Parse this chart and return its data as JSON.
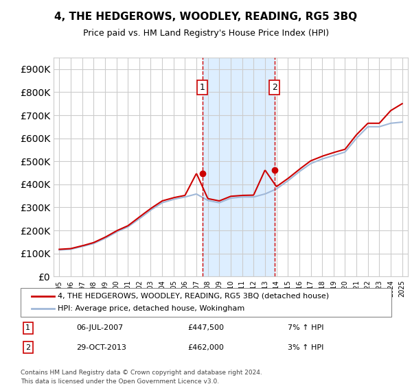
{
  "title": "4, THE HEDGEROWS, WOODLEY, READING, RG5 3BQ",
  "subtitle": "Price paid vs. HM Land Registry's House Price Index (HPI)",
  "legend_line1": "4, THE HEDGEROWS, WOODLEY, READING, RG5 3BQ (detached house)",
  "legend_line2": "HPI: Average price, detached house, Wokingham",
  "footer": "Contains HM Land Registry data © Crown copyright and database right 2024.\nThis data is licensed under the Open Government Licence v3.0.",
  "sale1_date": "06-JUL-2007",
  "sale1_price": 447500,
  "sale1_label": "7% ↑ HPI",
  "sale2_date": "29-OCT-2013",
  "sale2_price": 462000,
  "sale2_label": "3% ↑ HPI",
  "sale1_x": 2007.51,
  "sale2_x": 2013.83,
  "ylim": [
    0,
    950000
  ],
  "xlim_left": 1994.5,
  "xlim_right": 2025.5,
  "red_color": "#cc0000",
  "blue_color": "#a0b8d8",
  "shade_color": "#ddeeff",
  "background_color": "#ffffff",
  "grid_color": "#cccccc"
}
